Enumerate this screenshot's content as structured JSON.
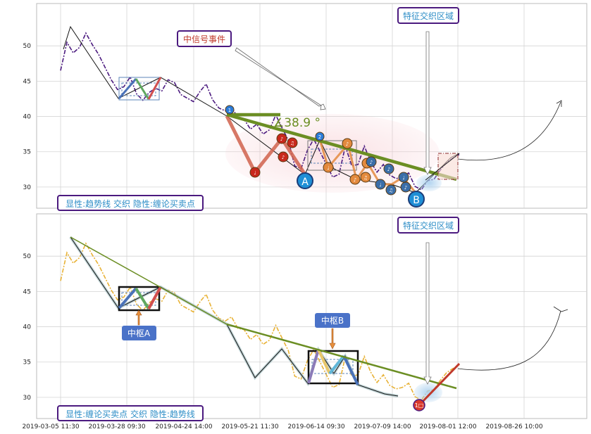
{
  "chart_data": [
    {
      "type": "line",
      "panel": "top",
      "ylim": [
        27,
        56
      ],
      "yticks": [
        30,
        35,
        40,
        45,
        50
      ],
      "grid": true,
      "colors": {
        "price": "#4b1a7f",
        "trend": "#6b8e23",
        "accent": "#c0392b"
      },
      "series": [
        {
          "values": [
            46.5,
            50.5,
            49.0,
            49.8,
            51.8,
            50.2,
            48.8,
            47.0,
            45.2,
            43.8,
            44.2,
            45.6,
            43.2,
            42.3,
            43.4,
            44.0,
            43.6,
            45.2,
            44.8,
            43.1,
            42.6,
            42.1,
            43.5,
            44.6,
            42.4,
            41.2,
            40.8,
            41.4,
            39.8,
            39.6,
            38.2,
            38.9,
            37.5,
            38.1,
            40.2,
            38.4,
            36.6,
            33.0,
            32.6,
            35.2,
            36.8,
            35.0,
            33.2,
            31.4,
            31.8,
            35.8,
            33.0,
            33.2,
            35.8,
            33.6,
            32.1,
            33.2,
            31.7,
            31.2,
            31.4,
            32.0,
            30.1,
            29.6,
            30.9,
            31.1,
            32.4,
            33.5,
            34.1,
            34.6
          ]
        }
      ],
      "annotations": {
        "signal_label": "中信号事件",
        "zone_label": "特征交织区域",
        "angle_label": "∡38.9 °",
        "point_a": "A",
        "point_b": "B",
        "legend_text": "显性:趋势线 交织 隐性:缠论买卖点"
      }
    },
    {
      "type": "line",
      "panel": "bottom",
      "ylim": [
        27,
        56
      ],
      "yticks": [
        30,
        35,
        40,
        45,
        50
      ],
      "grid": true,
      "colors": {
        "price": "#e8b236",
        "trend": "#6b8e23",
        "accent": "#c0392b"
      },
      "series": [
        {
          "values": [
            46.5,
            50.5,
            49.0,
            49.8,
            51.8,
            50.2,
            48.8,
            47.0,
            45.2,
            43.8,
            44.2,
            45.6,
            43.2,
            42.3,
            43.4,
            44.0,
            43.6,
            45.2,
            44.8,
            43.1,
            42.6,
            42.1,
            43.5,
            44.6,
            42.4,
            41.2,
            40.8,
            41.4,
            39.8,
            39.6,
            38.2,
            38.9,
            37.5,
            38.1,
            40.2,
            38.4,
            36.6,
            33.0,
            32.6,
            35.2,
            36.8,
            35.0,
            33.2,
            31.4,
            31.8,
            35.8,
            33.0,
            33.2,
            35.8,
            33.6,
            32.1,
            33.2,
            31.7,
            31.2,
            31.4,
            32.0,
            30.1,
            29.6,
            30.9,
            31.1,
            32.4,
            33.5,
            34.1,
            34.6
          ]
        }
      ],
      "annotations": {
        "zone_label": "特征交织区域",
        "pivot_a": "中枢A",
        "pivot_b": "中枢B",
        "buy_point": "1□",
        "legend_text": "显性:缠论买卖点 交织 隐性:趋势线"
      }
    }
  ],
  "x_tick_labels": [
    "2019-03-05 11:30",
    "2019-03-28 09:30",
    "2019-04-24 14:00",
    "2019-05-21 11:30",
    "2019-06-14 09:30",
    "2019-07-09 14:00",
    "2019-08-01 12:00",
    "2019-08-26 10:00"
  ]
}
